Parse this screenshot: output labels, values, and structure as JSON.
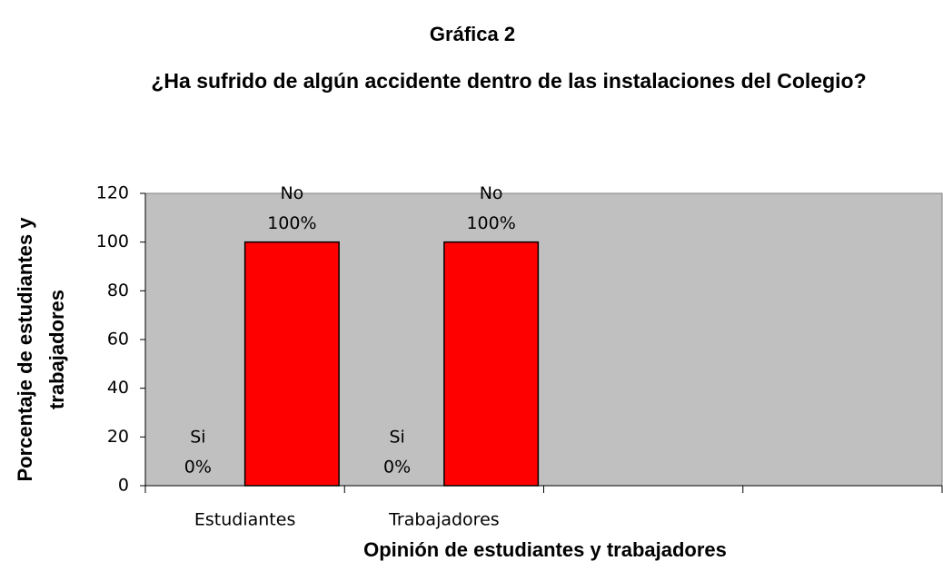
{
  "chart_data": {
    "type": "bar",
    "title": "Gráfica 2",
    "subtitle": "¿Ha sufrido de algún accidente dentro de las instalaciones del Colegio?",
    "xlabel": "Opinión de estudiantes y trabajadores",
    "ylabel": "Porcentaje de estudiantes y trabajadores",
    "categories": [
      "Estudiantes",
      "Trabajadores",
      null,
      null
    ],
    "series": [
      {
        "name": "Si",
        "color": "#ff0000",
        "values": [
          0,
          0,
          null,
          null
        ],
        "value_labels": [
          "0%",
          "0%",
          null,
          null
        ]
      },
      {
        "name": "No",
        "color": "#ff0000",
        "values": [
          100,
          100,
          null,
          null
        ],
        "value_labels": [
          "100%",
          "100%",
          null,
          null
        ]
      }
    ],
    "ylim": [
      0,
      120
    ],
    "yticks": [
      0,
      20,
      40,
      60,
      80,
      100,
      120
    ],
    "grid": false
  }
}
